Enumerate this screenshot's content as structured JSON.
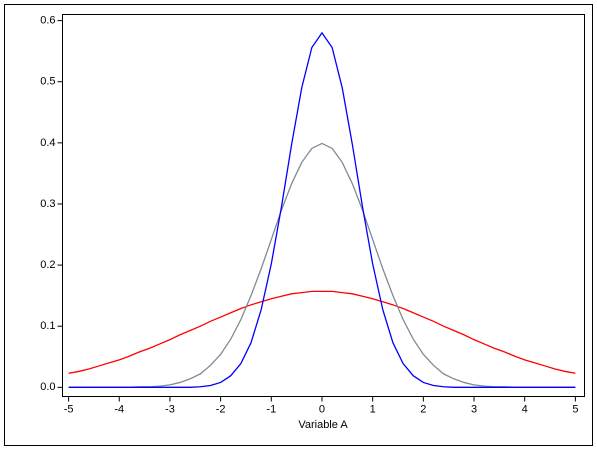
{
  "chart_data": {
    "type": "line",
    "x_label": "Variable A",
    "x": [
      -5,
      -4.8,
      -4.6,
      -4.4,
      -4.2,
      -4,
      -3.8,
      -3.6,
      -3.4,
      -3.2,
      -3,
      -2.8,
      -2.6,
      -2.4,
      -2.2,
      -2,
      -1.8,
      -1.6,
      -1.4,
      -1.2,
      -1,
      -0.8,
      -0.6,
      -0.4,
      -0.2,
      0,
      0.2,
      0.4,
      0.6,
      0.8,
      1,
      1.2,
      1.4,
      1.6,
      1.8,
      2,
      2.2,
      2.4,
      2.6,
      2.8,
      3,
      3.2,
      3.4,
      3.6,
      3.8,
      4,
      4.2,
      4.4,
      4.6,
      4.8,
      5
    ],
    "series": [
      {
        "color": "#ff0000",
        "values": [
          0.023,
          0.026,
          0.03,
          0.035,
          0.04,
          0.045,
          0.051,
          0.058,
          0.064,
          0.071,
          0.078,
          0.086,
          0.093,
          0.1,
          0.108,
          0.115,
          0.122,
          0.129,
          0.135,
          0.14,
          0.145,
          0.149,
          0.153,
          0.155,
          0.157,
          0.157,
          0.157,
          0.155,
          0.153,
          0.149,
          0.145,
          0.14,
          0.135,
          0.129,
          0.122,
          0.115,
          0.108,
          0.1,
          0.093,
          0.086,
          0.078,
          0.071,
          0.064,
          0.058,
          0.051,
          0.045,
          0.04,
          0.035,
          0.03,
          0.026,
          0.023
        ]
      },
      {
        "color": "#808a96",
        "values": [
          0,
          0,
          0,
          0,
          0,
          0,
          0,
          0.001,
          0.001,
          0.002,
          0.004,
          0.008,
          0.014,
          0.022,
          0.036,
          0.054,
          0.079,
          0.111,
          0.15,
          0.194,
          0.242,
          0.29,
          0.333,
          0.368,
          0.391,
          0.399,
          0.391,
          0.368,
          0.333,
          0.29,
          0.242,
          0.194,
          0.15,
          0.111,
          0.079,
          0.054,
          0.036,
          0.022,
          0.014,
          0.008,
          0.004,
          0.002,
          0.001,
          0.001,
          0,
          0,
          0,
          0,
          0,
          0,
          0
        ]
      },
      {
        "color": "#0000ff",
        "values": [
          0,
          0,
          0,
          0,
          0,
          0,
          0,
          0,
          0,
          0,
          0,
          0,
          0,
          0.001,
          0.003,
          0.008,
          0.019,
          0.039,
          0.073,
          0.127,
          0.202,
          0.295,
          0.397,
          0.49,
          0.556,
          0.58,
          0.556,
          0.49,
          0.397,
          0.295,
          0.202,
          0.127,
          0.073,
          0.039,
          0.019,
          0.008,
          0.003,
          0.001,
          0,
          0,
          0,
          0,
          0,
          0,
          0,
          0,
          0,
          0,
          0,
          0,
          0
        ]
      }
    ],
    "xlim": [
      -5.12,
      5.18
    ],
    "ylim": [
      -0.015,
      0.61
    ],
    "xticks": [
      -5,
      -4,
      -3,
      -2,
      -1,
      0,
      1,
      2,
      3,
      4,
      5
    ],
    "yticks": [
      {
        "value": 0,
        "label": "0.0"
      },
      0.1,
      0.2,
      0.3,
      0.4,
      0.5,
      0.6
    ]
  }
}
